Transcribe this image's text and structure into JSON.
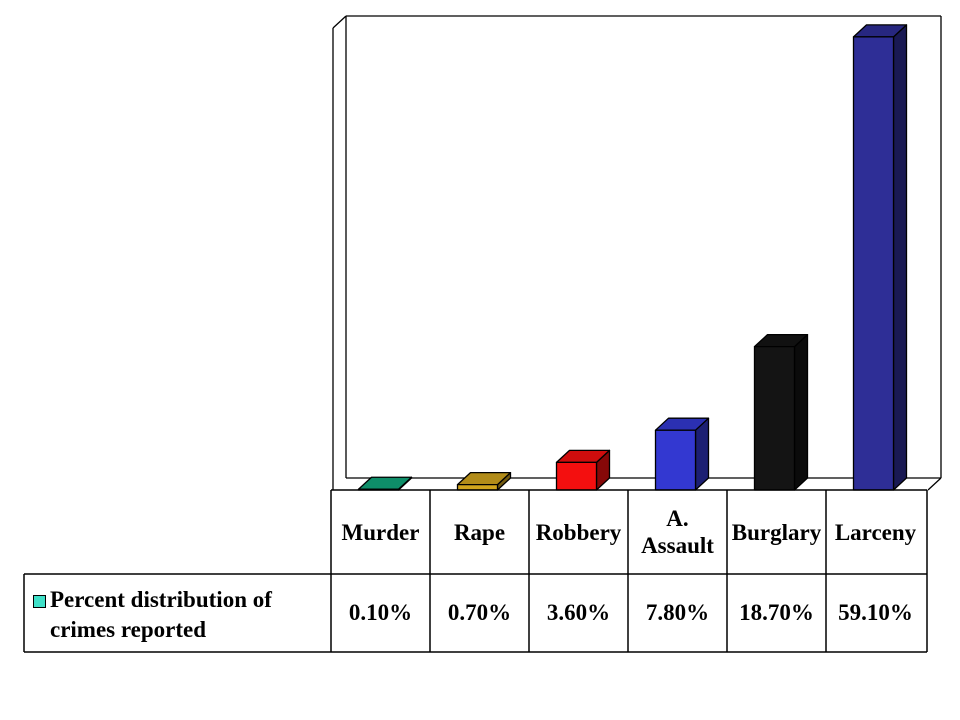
{
  "chart_data": {
    "type": "bar",
    "categories": [
      "Murder",
      "Rape",
      "Robbery",
      "A. Assault",
      "Burglary",
      "Larceny"
    ],
    "category_lines": [
      [
        "Murder"
      ],
      [
        "Rape"
      ],
      [
        "Robbery"
      ],
      [
        "A.",
        "Assault"
      ],
      [
        "Burglary"
      ],
      [
        "Larceny"
      ]
    ],
    "series": [
      {
        "name": "Percent distribution of crimes reported",
        "values": [
          0.1,
          0.7,
          3.6,
          7.8,
          18.7,
          59.1
        ],
        "labels": [
          "0.10%",
          "0.70%",
          "3.60%",
          "7.80%",
          "18.70%",
          "59.10%"
        ]
      }
    ],
    "bar_colors": [
      "#11A77C",
      "#D1A51D",
      "#F40F0F",
      "#3338D1",
      "#141414",
      "#2E2E96"
    ],
    "ylim": [
      0,
      60
    ],
    "grid": false,
    "legend": "data-table",
    "three_d": true
  },
  "legend": {
    "text": "Percent distribution of crimes reported",
    "swatch_color": "#3FE0C8"
  }
}
